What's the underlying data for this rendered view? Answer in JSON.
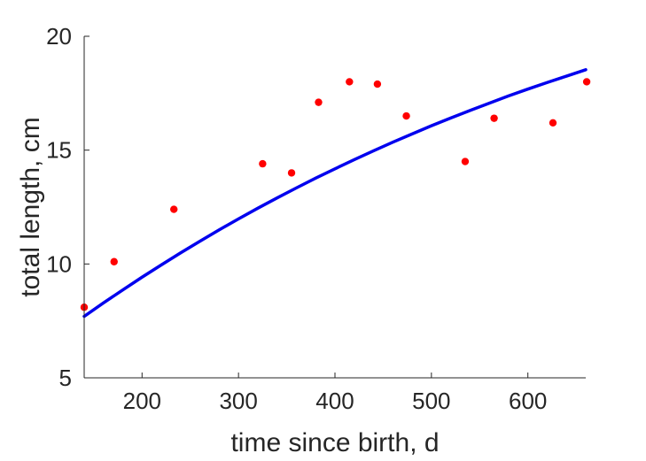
{
  "chart_data": {
    "type": "scatter",
    "xlabel": "time since birth, d",
    "ylabel": "total length, cm",
    "xlim": [
      140,
      660
    ],
    "ylim": [
      5,
      20
    ],
    "xticks": [
      200,
      300,
      400,
      500,
      600
    ],
    "yticks": [
      5,
      10,
      15,
      20
    ],
    "grid": false,
    "box": false,
    "series": [
      {
        "kind": "markers",
        "color": "#ff0000",
        "x": [
          140,
          171,
          233,
          325,
          355,
          383,
          415,
          444,
          474,
          535,
          565,
          626,
          661
        ],
        "y": [
          8.1,
          10.1,
          12.4,
          14.4,
          14.0,
          17.1,
          18.0,
          17.9,
          16.5,
          14.5,
          16.4,
          16.2,
          18.0
        ]
      },
      {
        "kind": "line",
        "color": "#0000ee",
        "x": [
          140,
          160,
          180,
          200,
          220,
          240,
          260,
          280,
          300,
          320,
          340,
          360,
          380,
          400,
          420,
          440,
          460,
          480,
          500,
          520,
          540,
          560,
          580,
          600,
          620,
          640,
          660
        ],
        "y": [
          7.7,
          8.29,
          8.86,
          9.42,
          9.96,
          10.49,
          11.0,
          11.5,
          11.98,
          12.45,
          12.9,
          13.34,
          13.77,
          14.18,
          14.58,
          14.97,
          15.35,
          15.71,
          16.07,
          16.41,
          16.74,
          17.06,
          17.38,
          17.68,
          17.97,
          18.25,
          18.53
        ]
      }
    ]
  }
}
